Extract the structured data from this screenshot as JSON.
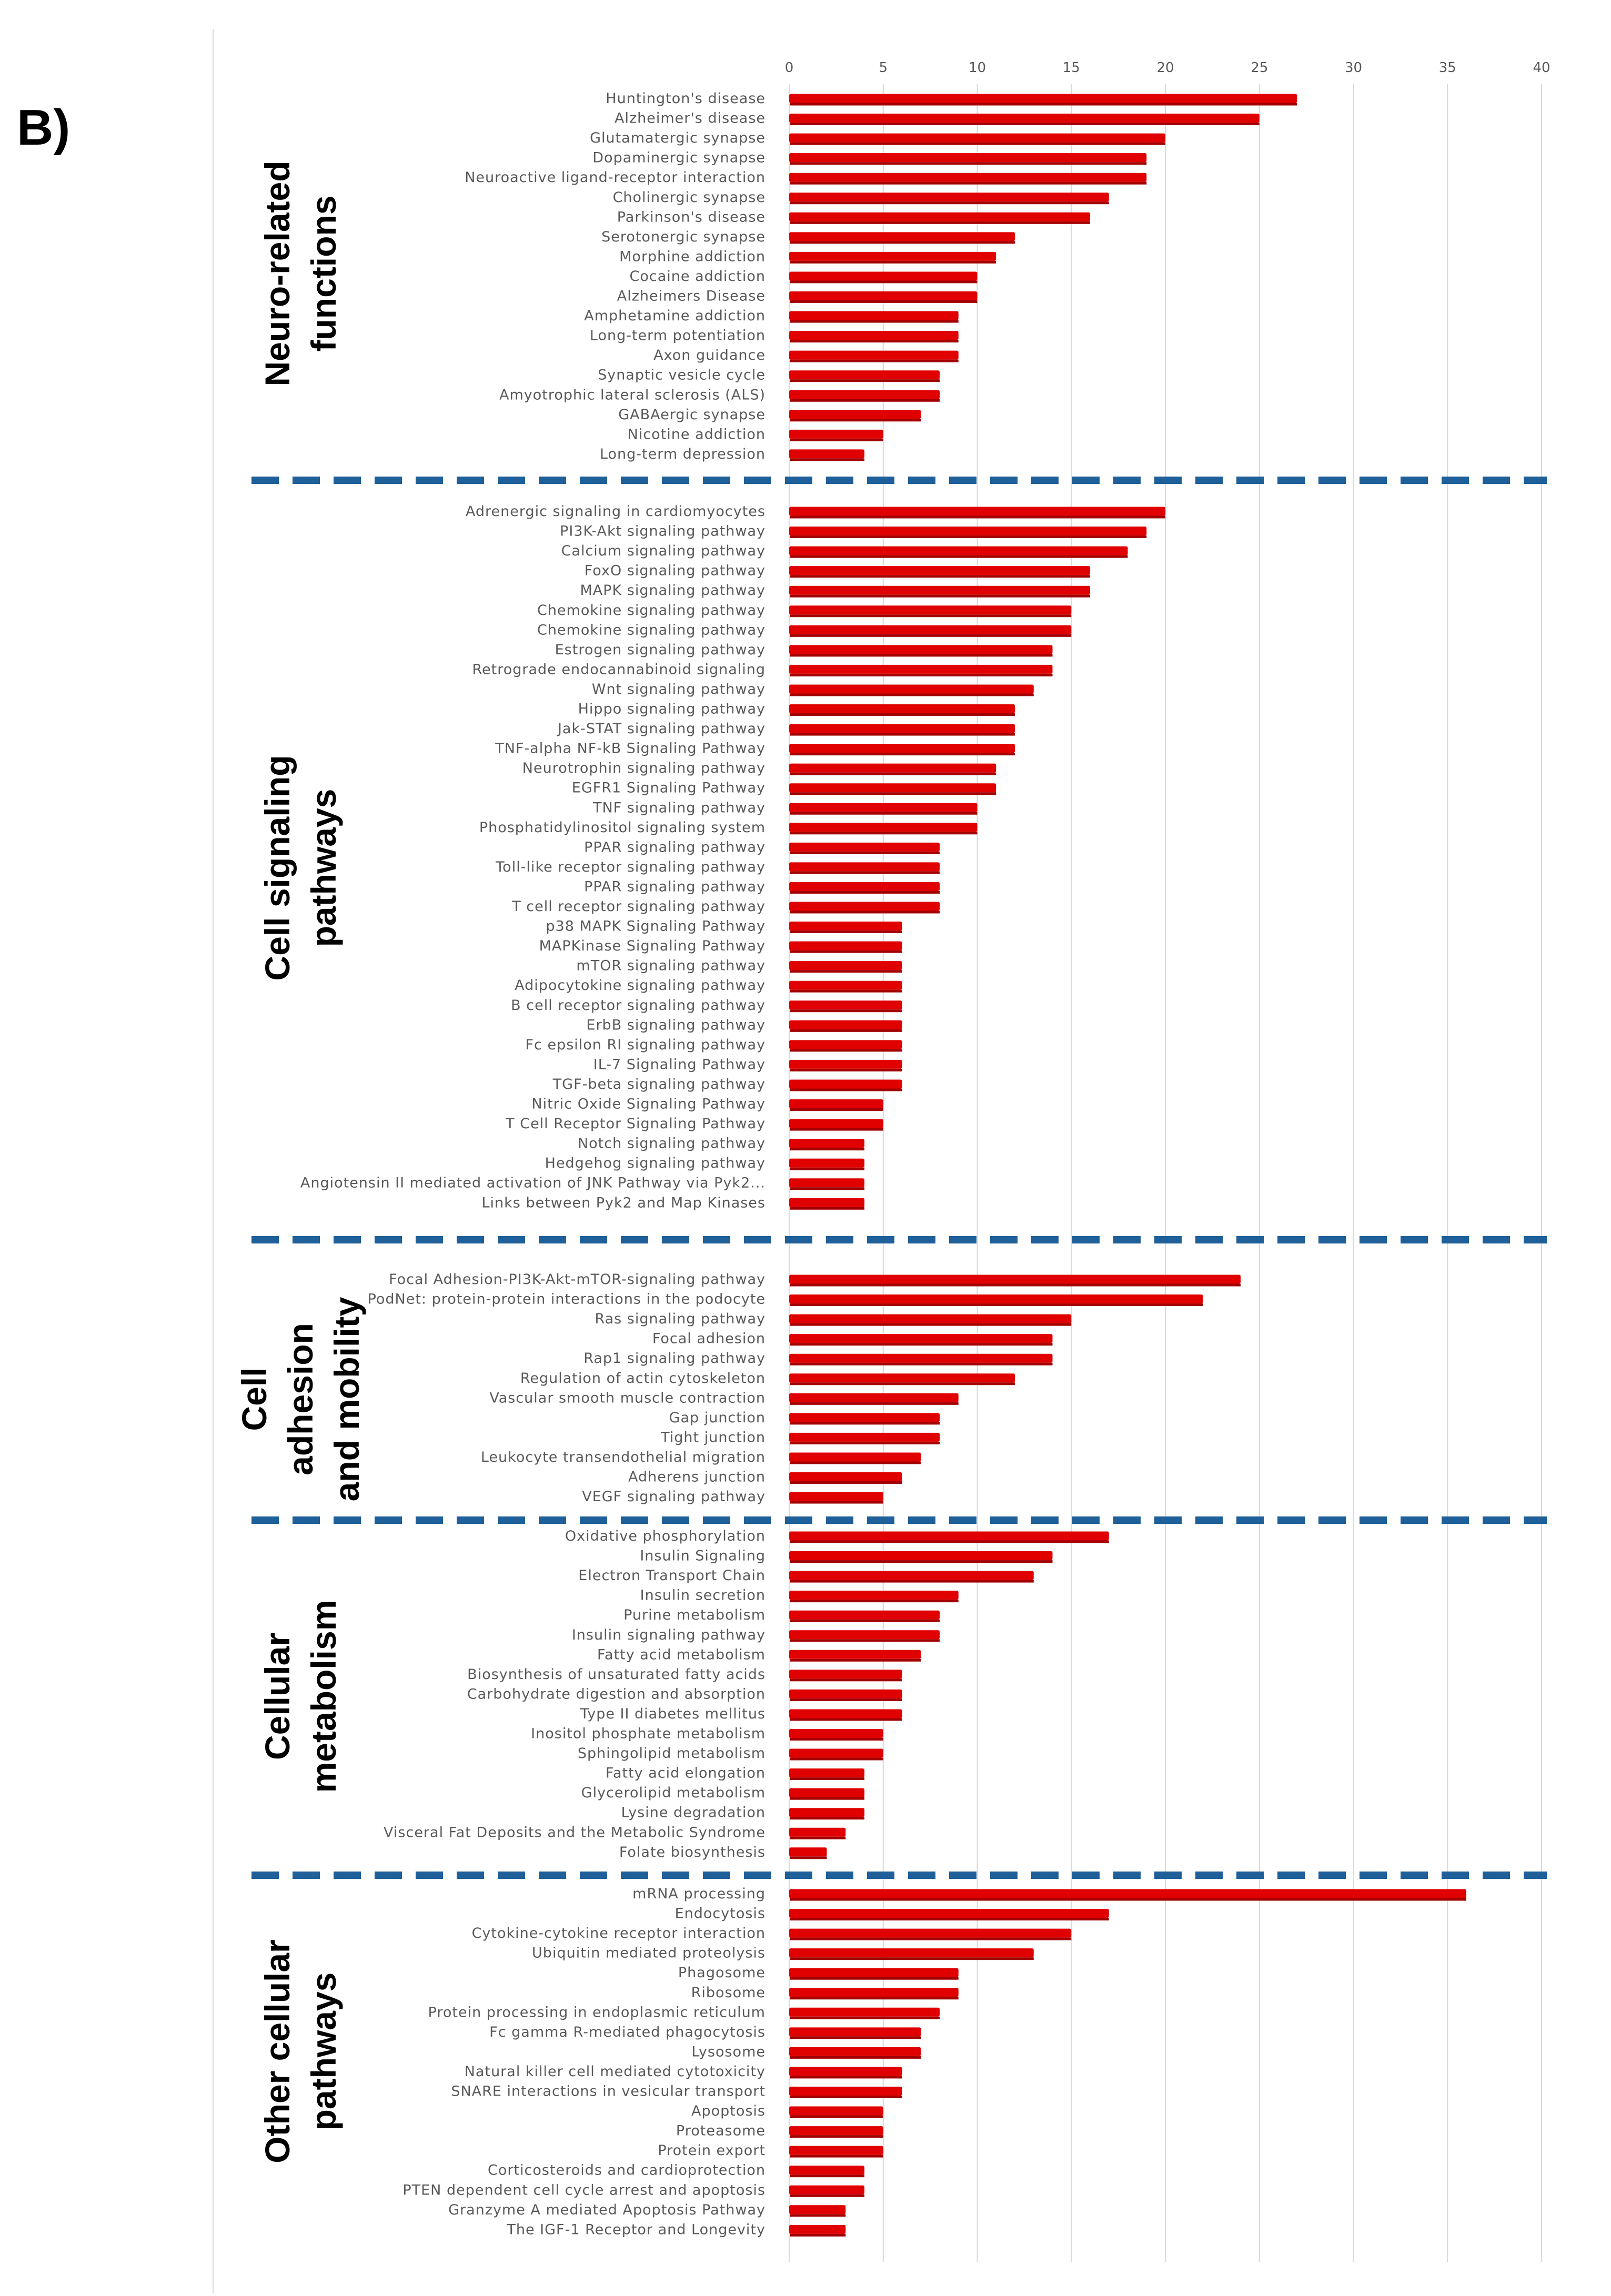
{
  "panel_label": "B)",
  "chart_data": {
    "type": "bar",
    "orientation": "horizontal",
    "xlim": [
      0,
      40
    ],
    "x_ticks": [
      0,
      5,
      10,
      15,
      20,
      25,
      30,
      35,
      40
    ],
    "bar_color": "#e00000",
    "separator_color": "#1f5f9a",
    "gridline_color": "#d9d9d9",
    "groups": [
      {
        "title_lines": [
          "Neuro-related",
          "functions"
        ],
        "categories": [
          "Huntington's disease",
          "Alzheimer's disease",
          "Glutamatergic synapse",
          "Dopaminergic synapse",
          "Neuroactive ligand-receptor interaction",
          "Cholinergic synapse",
          "Parkinson's disease",
          "Serotonergic synapse",
          "Morphine addiction",
          "Cocaine addiction",
          "Alzheimers Disease",
          "Amphetamine addiction",
          "Long-term potentiation",
          "Axon guidance",
          "Synaptic vesicle cycle",
          "Amyotrophic lateral sclerosis (ALS)",
          "GABAergic synapse",
          "Nicotine addiction",
          "Long-term depression"
        ],
        "values": [
          27,
          25,
          20,
          19,
          19,
          17,
          16,
          12,
          11,
          10,
          10,
          9,
          9,
          9,
          8,
          8,
          7,
          5,
          4
        ]
      },
      {
        "title_lines": [
          "Cell signaling",
          "pathways"
        ],
        "categories": [
          "Adrenergic signaling in cardiomyocytes",
          "PI3K-Akt signaling pathway",
          "Calcium signaling pathway",
          "FoxO signaling pathway",
          "MAPK signaling pathway",
          "Chemokine signaling pathway",
          "Chemokine signaling pathway",
          "Estrogen signaling pathway",
          "Retrograde endocannabinoid signaling",
          "Wnt signaling pathway",
          "Hippo signaling pathway",
          "Jak-STAT signaling pathway",
          "TNF-alpha NF-kB Signaling Pathway",
          "Neurotrophin signaling pathway",
          "EGFR1 Signaling Pathway",
          "TNF signaling pathway",
          "Phosphatidylinositol signaling system",
          "PPAR signaling pathway",
          "Toll-like receptor signaling pathway",
          "PPAR signaling pathway",
          "T cell receptor signaling pathway",
          "p38 MAPK Signaling Pathway",
          "MAPKinase Signaling Pathway",
          "mTOR signaling pathway",
          "Adipocytokine signaling pathway",
          "B cell receptor signaling pathway",
          "ErbB signaling pathway",
          "Fc epsilon RI signaling pathway",
          "IL-7 Signaling Pathway",
          "TGF-beta signaling pathway",
          "Nitric Oxide Signaling Pathway",
          "T Cell Receptor Signaling Pathway",
          "Notch signaling pathway",
          "Hedgehog signaling pathway",
          "Angiotensin II mediated activation of JNK Pathway via Pyk2...",
          "Links between Pyk2 and Map Kinases"
        ],
        "values": [
          20,
          19,
          18,
          16,
          16,
          15,
          15,
          14,
          14,
          13,
          12,
          12,
          12,
          11,
          11,
          10,
          10,
          8,
          8,
          8,
          8,
          6,
          6,
          6,
          6,
          6,
          6,
          6,
          6,
          6,
          5,
          5,
          4,
          4,
          4,
          4
        ]
      },
      {
        "title_lines": [
          "Cell",
          "adhesion",
          "and mobility"
        ],
        "categories": [
          "Focal Adhesion-PI3K-Akt-mTOR-signaling pathway",
          "PodNet: protein-protein interactions in the podocyte",
          "Ras signaling pathway",
          "Focal adhesion",
          "Rap1 signaling pathway",
          "Regulation of actin cytoskeleton",
          "Vascular smooth muscle contraction",
          "Gap junction",
          "Tight junction",
          "Leukocyte transendothelial migration",
          "Adherens junction",
          "VEGF signaling pathway"
        ],
        "values": [
          24,
          22,
          15,
          14,
          14,
          12,
          9,
          8,
          8,
          7,
          6,
          5
        ]
      },
      {
        "title_lines": [
          "Cellular",
          "metabolism"
        ],
        "categories": [
          "Oxidative phosphorylation",
          "Insulin Signaling",
          "Electron Transport Chain",
          "Insulin secretion",
          "Purine metabolism",
          "Insulin signaling pathway",
          "Fatty acid metabolism",
          "Biosynthesis of unsaturated fatty acids",
          "Carbohydrate digestion and absorption",
          "Type II diabetes mellitus",
          "Inositol phosphate metabolism",
          "Sphingolipid metabolism",
          "Fatty acid elongation",
          "Glycerolipid metabolism",
          "Lysine degradation",
          "Visceral Fat Deposits and the Metabolic Syndrome",
          "Folate biosynthesis"
        ],
        "values": [
          17,
          14,
          13,
          9,
          8,
          8,
          7,
          6,
          6,
          6,
          5,
          5,
          4,
          4,
          4,
          3,
          2
        ]
      },
      {
        "title_lines": [
          "Other cellular",
          "pathways"
        ],
        "categories": [
          "mRNA processing",
          "Endocytosis",
          "Cytokine-cytokine receptor interaction",
          "Ubiquitin mediated proteolysis",
          "Phagosome",
          "Ribosome",
          "Protein processing in endoplasmic reticulum",
          "Fc gamma R-mediated phagocytosis",
          "Lysosome",
          "Natural killer cell mediated cytotoxicity",
          "SNARE interactions in vesicular transport",
          "Apoptosis",
          "Proteasome",
          "Protein export",
          "Corticosteroids and cardioprotection",
          "PTEN dependent cell cycle arrest and apoptosis",
          "Granzyme A mediated Apoptosis Pathway",
          "The IGF-1 Receptor and Longevity"
        ],
        "values": [
          36,
          17,
          15,
          13,
          9,
          9,
          8,
          7,
          7,
          6,
          6,
          5,
          5,
          5,
          4,
          4,
          3,
          3
        ]
      }
    ]
  }
}
